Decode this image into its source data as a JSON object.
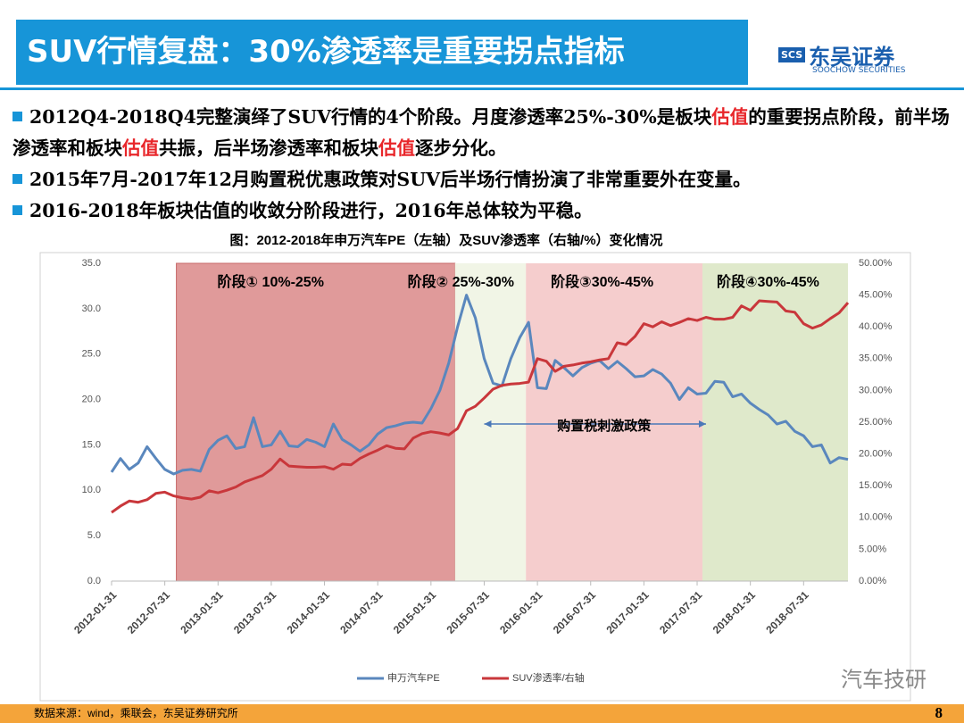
{
  "header": {
    "title": "SUV行情复盘：30%渗透率是重要拐点指标",
    "logo_mark": "SCS",
    "logo_name": "东吴证券",
    "logo_en": "SOOCHOW SECURITIES"
  },
  "bullets": [
    {
      "segments": [
        "2012Q4-2018Q4完整演绎了SUV行情的4个阶段。月度渗透率25%-30%是板块",
        "估值",
        "的重要拐点阶段，前半场渗透率和板块",
        "估值",
        "共振，后半场渗透率和板块",
        "估值",
        "逐步分化。"
      ]
    },
    {
      "segments": [
        "2015年7月-2017年12月购置税优惠政策对SUV后半场行情扮演了非常重要外在变量。"
      ]
    },
    {
      "segments": [
        "2016-2018年板块估值的收敛分阶段进行，2016年总体较为平稳。"
      ]
    }
  ],
  "highlight_color": "#e8262a",
  "chart_data": {
    "type": "line",
    "title": "图：2012-2018年申万汽车PE（左轴）及SUV渗透率（右轴/%）变化情况",
    "categories": [
      "2012-01-31",
      null,
      null,
      null,
      null,
      null,
      "2012-07-31",
      null,
      null,
      null,
      null,
      null,
      "2013-01-31",
      null,
      null,
      null,
      null,
      null,
      "2013-07-31",
      null,
      null,
      null,
      null,
      null,
      "2014-01-31",
      null,
      null,
      null,
      null,
      null,
      "2014-07-31",
      null,
      null,
      null,
      null,
      null,
      "2015-01-31",
      null,
      null,
      null,
      null,
      null,
      "2015-07-31",
      null,
      null,
      null,
      null,
      null,
      "2016-01-31",
      null,
      null,
      null,
      null,
      null,
      "2016-07-31",
      null,
      null,
      null,
      null,
      null,
      "2017-01-31",
      null,
      null,
      null,
      null,
      null,
      "2017-07-31",
      null,
      null,
      null,
      null,
      null,
      "2018-01-31",
      null,
      null,
      null,
      null,
      null,
      "2018-07-31",
      null,
      null,
      null,
      null,
      null
    ],
    "series": [
      {
        "name": "申万汽车PE",
        "color": "#5a87bd",
        "values": [
          12.0,
          13.5,
          12.3,
          13.0,
          14.8,
          13.5,
          12.3,
          11.8,
          12.2,
          12.3,
          12.1,
          14.5,
          15.5,
          16.0,
          14.6,
          14.8,
          18.0,
          14.8,
          15.0,
          16.5,
          14.9,
          14.8,
          15.6,
          15.3,
          14.8,
          17.3,
          15.6,
          15.0,
          14.3,
          15.0,
          16.2,
          16.9,
          17.1,
          17.4,
          17.5,
          17.4,
          19.0,
          21.0,
          24.0,
          28.0,
          31.5,
          29.0,
          24.5,
          21.8,
          21.5,
          24.5,
          26.8,
          28.5,
          21.3,
          21.2,
          24.3,
          23.5,
          22.6,
          23.5,
          24.0,
          24.3,
          23.4,
          24.2,
          23.4,
          22.5,
          22.6,
          23.3,
          22.8,
          21.8,
          20.0,
          21.3,
          20.6,
          20.7,
          22.0,
          21.9,
          20.3,
          20.6,
          19.6,
          18.9,
          18.3,
          17.3,
          17.6,
          16.5,
          16.0,
          14.8,
          15.0,
          13.0,
          13.6,
          13.4
        ]
      },
      {
        "name": "SUV渗透率/右轴",
        "color": "#c9373b",
        "axis": "y2",
        "values": [
          10.8,
          11.8,
          12.6,
          12.4,
          12.8,
          13.8,
          14.0,
          13.4,
          13.1,
          12.9,
          13.2,
          14.2,
          13.9,
          14.3,
          14.8,
          15.6,
          16.1,
          16.6,
          17.6,
          19.2,
          18.1,
          18.0,
          17.9,
          17.9,
          18.0,
          17.6,
          18.4,
          18.3,
          19.3,
          20.0,
          20.6,
          21.3,
          20.9,
          20.8,
          22.5,
          23.2,
          23.5,
          23.3,
          23.0,
          24.0,
          26.8,
          27.5,
          28.8,
          30.2,
          30.8,
          31.0,
          31.1,
          31.3,
          35.0,
          34.6,
          33.0,
          33.8,
          34.0,
          34.3,
          34.5,
          34.8,
          35.0,
          37.5,
          37.2,
          38.5,
          40.5,
          40.0,
          40.8,
          40.2,
          40.7,
          41.3,
          41.0,
          41.5,
          41.2,
          41.2,
          41.5,
          43.3,
          42.6,
          44.1,
          44.0,
          43.9,
          42.5,
          42.3,
          40.5,
          39.8,
          40.3,
          41.3,
          42.2,
          43.8
        ]
      }
    ],
    "ylim": [
      0,
      35
    ],
    "yticks": [
      {
        "value": 0,
        "label": "0.0"
      },
      {
        "value": 5,
        "label": "5.0"
      },
      {
        "value": 10,
        "label": "10.0"
      },
      {
        "value": 15,
        "label": "15.0"
      },
      {
        "value": 20,
        "label": "20.0"
      },
      {
        "value": 25,
        "label": "25.0"
      },
      {
        "value": 30,
        "label": "30.0"
      },
      {
        "value": 35,
        "label": "35.0"
      }
    ],
    "y2lim": [
      0,
      50
    ],
    "y2ticks": [
      {
        "value": 0,
        "label": "0.00%"
      },
      {
        "value": 5,
        "label": "5.00%"
      },
      {
        "value": 10,
        "label": "10.00%"
      },
      {
        "value": 15,
        "label": "15.00%"
      },
      {
        "value": 20,
        "label": "20.00%"
      },
      {
        "value": 25,
        "label": "25.00%"
      },
      {
        "value": 30,
        "label": "30.00%"
      },
      {
        "value": 35,
        "label": "35.00%"
      },
      {
        "value": 40,
        "label": "40.00%"
      },
      {
        "value": 45,
        "label": "45.00%"
      },
      {
        "value": 50,
        "label": "50.00%"
      }
    ],
    "regions": [
      {
        "label": "阶段① 10%-25%",
        "start": 7.3,
        "end": 38.7,
        "color": "#e09a9a"
      },
      {
        "label": "阶段② 25%-30%",
        "start": 38.7,
        "end": 46.7,
        "color": "#f1f5e6"
      },
      {
        "label": "阶段③30%-45%",
        "start": 46.7,
        "end": 66.6,
        "color": "#f5cdcd"
      },
      {
        "label": "阶段④30%-45%",
        "start": 66.6,
        "end": 83,
        "color": "#dfe9cb"
      }
    ],
    "annotation": {
      "text": "购置税刺激政策",
      "start": 42,
      "end": 67,
      "y": 17.3
    },
    "legend": "bottom"
  },
  "watermark": "汽车技研",
  "footer": {
    "source": "数据来源：wind，乘联会，东吴证券研究所",
    "page": "8"
  }
}
